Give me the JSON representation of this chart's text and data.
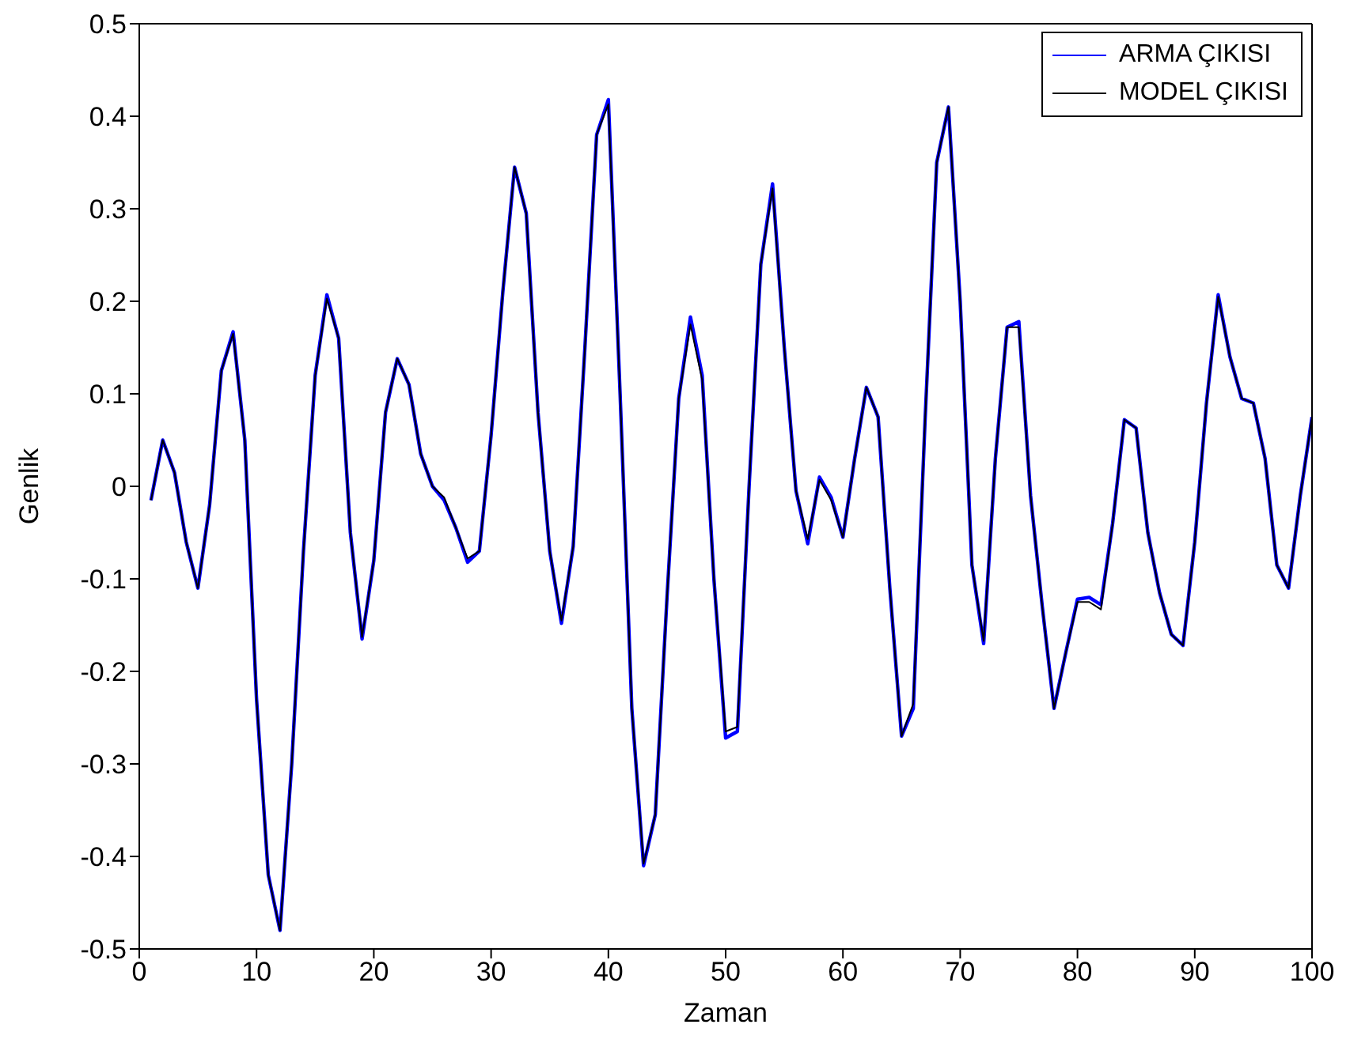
{
  "chart_data": {
    "type": "line",
    "xlabel": "Zaman",
    "ylabel": "Genlik",
    "x": [
      1,
      2,
      3,
      4,
      5,
      6,
      7,
      8,
      9,
      10,
      11,
      12,
      13,
      14,
      15,
      16,
      17,
      18,
      19,
      20,
      21,
      22,
      23,
      24,
      25,
      26,
      27,
      28,
      29,
      30,
      31,
      32,
      33,
      34,
      35,
      36,
      37,
      38,
      39,
      40,
      41,
      42,
      43,
      44,
      45,
      46,
      47,
      48,
      49,
      50,
      51,
      52,
      53,
      54,
      55,
      56,
      57,
      58,
      59,
      60,
      61,
      62,
      63,
      64,
      65,
      66,
      67,
      68,
      69,
      70,
      71,
      72,
      73,
      74,
      75,
      76,
      77,
      78,
      79,
      80,
      81,
      82,
      83,
      84,
      85,
      86,
      87,
      88,
      89,
      90,
      91,
      92,
      93,
      94,
      95,
      96,
      97,
      98,
      99,
      100
    ],
    "series": [
      {
        "name": "ARMA ÇIKISI",
        "color": "#0000ff",
        "values": [
          -0.015,
          0.05,
          0.015,
          -0.06,
          -0.11,
          -0.02,
          0.125,
          0.167,
          0.05,
          -0.23,
          -0.42,
          -0.48,
          -0.3,
          -0.07,
          0.12,
          0.207,
          0.16,
          -0.05,
          -0.165,
          -0.08,
          0.08,
          0.138,
          0.11,
          0.035,
          0.0,
          -0.015,
          -0.045,
          -0.082,
          -0.07,
          0.055,
          0.21,
          0.345,
          0.295,
          0.08,
          -0.07,
          -0.148,
          -0.065,
          0.15,
          0.38,
          0.418,
          0.1,
          -0.24,
          -0.41,
          -0.355,
          -0.12,
          0.095,
          0.183,
          0.12,
          -0.1,
          -0.272,
          -0.265,
          0.0,
          0.24,
          0.327,
          0.15,
          -0.005,
          -0.062,
          0.01,
          -0.012,
          -0.055,
          0.03,
          0.107,
          0.075,
          -0.11,
          -0.27,
          -0.24,
          0.07,
          0.35,
          0.41,
          0.2,
          -0.085,
          -0.17,
          0.03,
          0.172,
          0.178,
          -0.01,
          -0.13,
          -0.24,
          -0.18,
          -0.122,
          -0.12,
          -0.128,
          -0.04,
          0.072,
          0.063,
          -0.05,
          -0.115,
          -0.16,
          -0.172,
          -0.06,
          0.09,
          0.207,
          0.14,
          0.095,
          0.09,
          0.03,
          -0.085,
          -0.11,
          -0.01,
          0.075
        ]
      },
      {
        "name": "MODEL ÇIKISI",
        "color": "#000000",
        "values": [
          -0.015,
          0.05,
          0.015,
          -0.06,
          -0.11,
          -0.02,
          0.125,
          0.165,
          0.05,
          -0.23,
          -0.42,
          -0.48,
          -0.3,
          -0.07,
          0.12,
          0.203,
          0.16,
          -0.05,
          -0.163,
          -0.08,
          0.08,
          0.138,
          0.11,
          0.035,
          0.0,
          -0.012,
          -0.045,
          -0.078,
          -0.07,
          0.055,
          0.21,
          0.345,
          0.295,
          0.08,
          -0.07,
          -0.145,
          -0.065,
          0.15,
          0.38,
          0.413,
          0.1,
          -0.24,
          -0.408,
          -0.355,
          -0.12,
          0.095,
          0.175,
          0.115,
          -0.1,
          -0.265,
          -0.26,
          0.0,
          0.24,
          0.322,
          0.15,
          -0.005,
          -0.057,
          0.007,
          -0.015,
          -0.055,
          0.03,
          0.107,
          0.075,
          -0.11,
          -0.27,
          -0.235,
          0.07,
          0.35,
          0.41,
          0.2,
          -0.085,
          -0.167,
          0.03,
          0.172,
          0.172,
          -0.01,
          -0.13,
          -0.24,
          -0.18,
          -0.125,
          -0.125,
          -0.133,
          -0.04,
          0.072,
          0.063,
          -0.05,
          -0.115,
          -0.16,
          -0.172,
          -0.06,
          0.09,
          0.205,
          0.14,
          0.095,
          0.09,
          0.03,
          -0.085,
          -0.11,
          -0.01,
          0.075
        ]
      }
    ],
    "xlim": [
      0,
      100
    ],
    "xticks": [
      0,
      10,
      20,
      30,
      40,
      50,
      60,
      70,
      80,
      90,
      100
    ],
    "ylim": [
      -0.5,
      0.5
    ],
    "yticks": [
      -0.5,
      -0.4,
      -0.3,
      -0.2,
      -0.1,
      0,
      0.1,
      0.2,
      0.3,
      0.4,
      0.5
    ],
    "grid": false,
    "legend": "top right",
    "marker": "none",
    "line_style": "solid"
  }
}
